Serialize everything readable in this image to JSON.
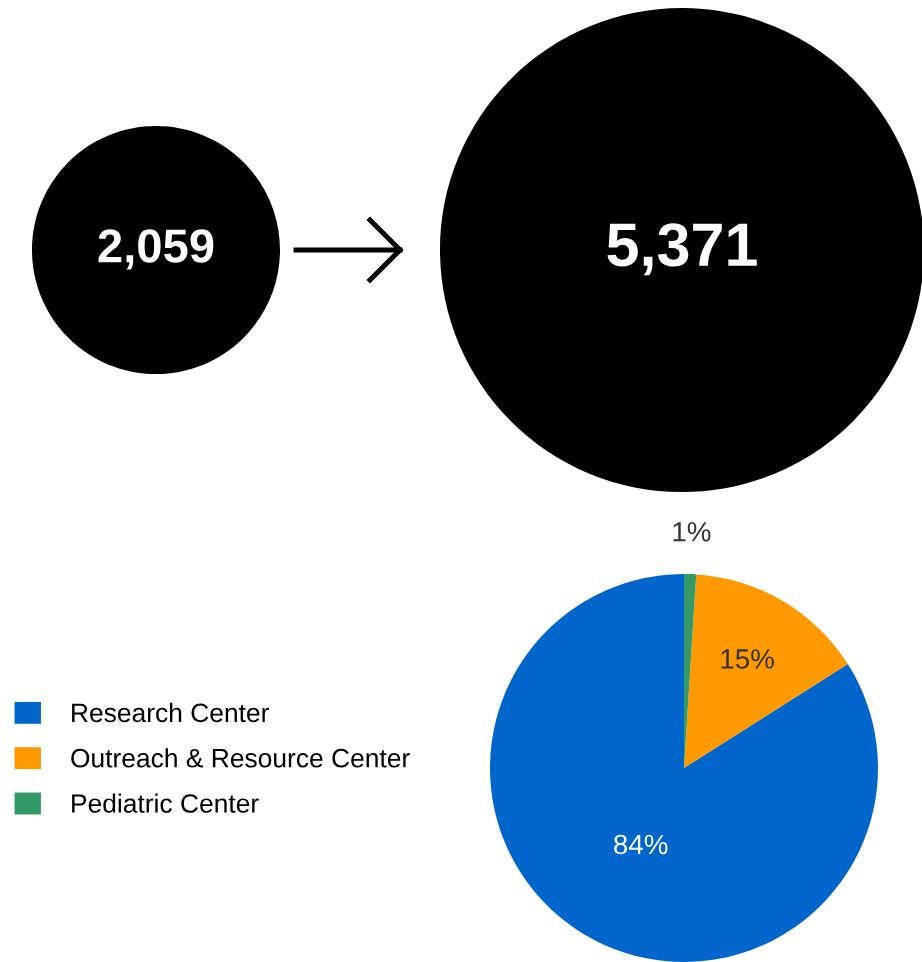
{
  "chart_data": [
    {
      "type": "other",
      "annotations": [
        "2,059",
        "5,371"
      ],
      "colors": [
        "#000000",
        "#000000"
      ]
    },
    {
      "type": "pie",
      "categories": [
        "Research Center",
        "Outreach & Resource Center",
        "Pediatric Center"
      ],
      "values": [
        84,
        15,
        1
      ],
      "colors": [
        "#0066cc",
        "#ff9900",
        "#339966"
      ],
      "value_labels": [
        "84%",
        "15%",
        "1%"
      ],
      "legend": "left"
    }
  ]
}
